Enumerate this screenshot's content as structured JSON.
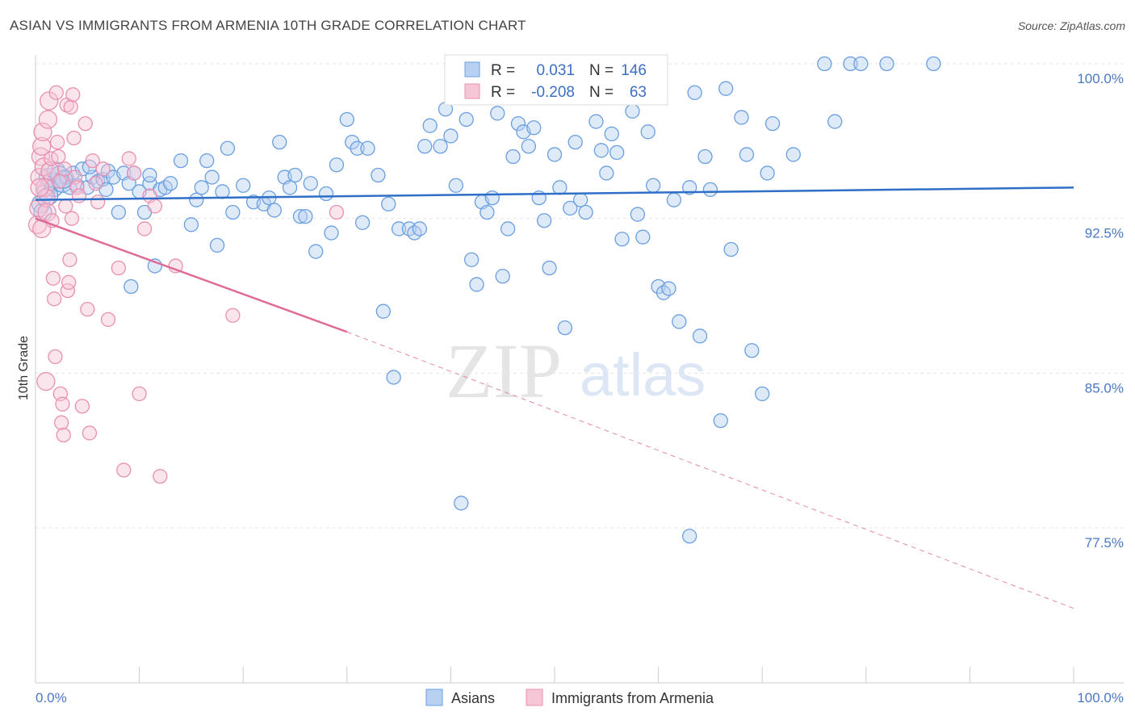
{
  "title": "ASIAN VS IMMIGRANTS FROM ARMENIA 10TH GRADE CORRELATION CHART",
  "source": "Source: ZipAtlas.com",
  "watermark": {
    "zip": "ZIP",
    "atlas": "atlas"
  },
  "chart_data": {
    "type": "scatter",
    "ylabel": "10th Grade",
    "xlim": [
      0,
      100
    ],
    "ylim": [
      70,
      100
    ],
    "y_ticks": [
      {
        "value": 100.0,
        "label": "100.0%"
      },
      {
        "value": 92.5,
        "label": "92.5%"
      },
      {
        "value": 85.0,
        "label": "85.0%"
      },
      {
        "value": 77.5,
        "label": "77.5%"
      }
    ],
    "x_tick_labels": {
      "min": "0.0%",
      "max": "100.0%"
    },
    "x_minor_ticks": [
      0,
      10,
      20,
      30,
      40,
      50,
      60,
      70,
      80,
      90,
      100
    ],
    "grid": true,
    "legend_position": "top-center",
    "series": [
      {
        "name": "Asians",
        "color": "#6a9fe0",
        "fill": "#b8d0f2",
        "R_label": "R =",
        "R": "0.031",
        "N_label": "N =",
        "N": "146",
        "trend": {
          "x": [
            0,
            100
          ],
          "y": [
            93.4,
            94.0
          ],
          "style": "solid",
          "color": "#2f6fc8"
        },
        "points": [
          [
            0.5,
            93.2
          ],
          [
            0.7,
            92.8
          ],
          [
            1.0,
            93.8
          ],
          [
            1.2,
            94.5
          ],
          [
            1.5,
            94.3
          ],
          [
            1.8,
            94.0
          ],
          [
            2.0,
            94.8
          ],
          [
            2.3,
            94.6
          ],
          [
            2.6,
            94.2
          ],
          [
            3.0,
            94.5
          ],
          [
            3.3,
            94.0
          ],
          [
            3.6,
            94.7
          ],
          [
            4.0,
            94.1
          ],
          [
            4.5,
            94.9
          ],
          [
            5.0,
            94.0
          ],
          [
            5.5,
            94.5
          ],
          [
            6.0,
            94.3
          ],
          [
            6.5,
            94.4
          ],
          [
            7.0,
            94.8
          ],
          [
            7.5,
            94.5
          ],
          [
            8.0,
            92.8
          ],
          [
            8.5,
            94.7
          ],
          [
            9.0,
            94.2
          ],
          [
            9.5,
            94.7
          ],
          [
            10.0,
            93.8
          ],
          [
            10.5,
            92.8
          ],
          [
            11.0,
            94.2
          ],
          [
            11.5,
            90.2
          ],
          [
            12.0,
            93.9
          ],
          [
            12.5,
            94.0
          ],
          [
            13.0,
            94.2
          ],
          [
            14.0,
            95.3
          ],
          [
            15.0,
            92.2
          ],
          [
            15.5,
            93.4
          ],
          [
            16.0,
            94.0
          ],
          [
            16.5,
            95.3
          ],
          [
            17.0,
            94.5
          ],
          [
            17.5,
            91.2
          ],
          [
            18.0,
            93.8
          ],
          [
            18.5,
            95.9
          ],
          [
            19.0,
            92.8
          ],
          [
            20.0,
            94.1
          ],
          [
            21.0,
            93.3
          ],
          [
            22.0,
            93.2
          ],
          [
            22.5,
            93.5
          ],
          [
            23.0,
            92.9
          ],
          [
            23.5,
            96.2
          ],
          [
            24.0,
            94.5
          ],
          [
            24.5,
            94.0
          ],
          [
            25.0,
            94.6
          ],
          [
            25.5,
            92.6
          ],
          [
            26.0,
            92.6
          ],
          [
            26.5,
            94.2
          ],
          [
            27.0,
            90.9
          ],
          [
            28.0,
            93.7
          ],
          [
            28.5,
            91.8
          ],
          [
            29.0,
            95.1
          ],
          [
            30.0,
            97.3
          ],
          [
            30.5,
            96.2
          ],
          [
            31.0,
            95.9
          ],
          [
            31.5,
            92.3
          ],
          [
            32.0,
            95.9
          ],
          [
            33.0,
            94.6
          ],
          [
            33.5,
            88.0
          ],
          [
            34.0,
            93.2
          ],
          [
            34.5,
            84.8
          ],
          [
            35.0,
            92.0
          ],
          [
            36.0,
            92.0
          ],
          [
            36.5,
            91.8
          ],
          [
            37.0,
            92.0
          ],
          [
            37.5,
            96.0
          ],
          [
            38.0,
            97.0
          ],
          [
            39.0,
            96.0
          ],
          [
            39.5,
            97.8
          ],
          [
            40.0,
            96.5
          ],
          [
            40.5,
            94.1
          ],
          [
            41.0,
            78.7
          ],
          [
            41.5,
            97.3
          ],
          [
            42.0,
            90.5
          ],
          [
            42.5,
            89.3
          ],
          [
            43.0,
            93.3
          ],
          [
            43.5,
            92.8
          ],
          [
            44.0,
            93.5
          ],
          [
            44.5,
            97.6
          ],
          [
            45.0,
            89.7
          ],
          [
            45.5,
            92.0
          ],
          [
            46.0,
            95.5
          ],
          [
            46.5,
            97.1
          ],
          [
            47.0,
            96.7
          ],
          [
            47.5,
            96.0
          ],
          [
            48.0,
            96.9
          ],
          [
            48.5,
            93.5
          ],
          [
            49.0,
            92.4
          ],
          [
            49.5,
            90.1
          ],
          [
            50.0,
            95.6
          ],
          [
            50.5,
            94.0
          ],
          [
            51.0,
            87.2
          ],
          [
            51.5,
            93.0
          ],
          [
            52.0,
            96.2
          ],
          [
            52.5,
            93.4
          ],
          [
            53.0,
            92.8
          ],
          [
            54.0,
            97.2
          ],
          [
            54.5,
            95.8
          ],
          [
            55.0,
            94.7
          ],
          [
            55.5,
            96.6
          ],
          [
            56.0,
            95.7
          ],
          [
            56.5,
            91.5
          ],
          [
            57.0,
            98.7
          ],
          [
            57.5,
            97.7
          ],
          [
            58.0,
            92.7
          ],
          [
            58.5,
            91.6
          ],
          [
            59.0,
            96.7
          ],
          [
            59.5,
            94.1
          ],
          [
            60.0,
            89.2
          ],
          [
            60.5,
            88.9
          ],
          [
            61.0,
            89.1
          ],
          [
            61.5,
            93.4
          ],
          [
            62.0,
            87.5
          ],
          [
            63.0,
            94.0
          ],
          [
            63.5,
            98.6
          ],
          [
            64.0,
            86.8
          ],
          [
            64.5,
            95.5
          ],
          [
            65.0,
            93.9
          ],
          [
            66.0,
            82.7
          ],
          [
            66.5,
            98.8
          ],
          [
            67.0,
            91.0
          ],
          [
            68.0,
            97.4
          ],
          [
            68.5,
            95.6
          ],
          [
            69.0,
            86.1
          ],
          [
            70.0,
            84.0
          ],
          [
            70.5,
            94.7
          ],
          [
            71.0,
            97.1
          ],
          [
            73.0,
            95.6
          ],
          [
            76.0,
            100.0
          ],
          [
            78.5,
            100.0
          ],
          [
            79.5,
            100.0
          ],
          [
            82.0,
            100.0
          ],
          [
            86.5,
            100.0
          ],
          [
            77.0,
            97.2
          ],
          [
            63.0,
            77.1
          ],
          [
            5.2,
            95.0
          ],
          [
            6.8,
            93.9
          ],
          [
            9.2,
            89.2
          ],
          [
            11.0,
            94.6
          ],
          [
            2.7,
            94.4
          ],
          [
            1.3,
            93.6
          ]
        ]
      },
      {
        "name": "Immigrants from Armenia",
        "color": "#e890b0",
        "fill": "#f7c6d6",
        "R_label": "R =",
        "R": "-0.208",
        "N_label": "N =",
        "N": "63",
        "trend": {
          "x": [
            0,
            30
          ],
          "y": [
            92.5,
            87.0
          ],
          "style": "solid",
          "color": "#e06b96",
          "extension": {
            "x": [
              30,
              100
            ],
            "y": [
              87.0,
              73.6
            ],
            "style": "dashed"
          }
        },
        "points": [
          [
            0.2,
            92.2
          ],
          [
            0.3,
            93.0
          ],
          [
            0.4,
            94.5
          ],
          [
            0.5,
            95.5
          ],
          [
            0.6,
            96.0
          ],
          [
            0.7,
            96.7
          ],
          [
            0.8,
            95.0
          ],
          [
            0.9,
            94.0
          ],
          [
            1.0,
            93.5
          ],
          [
            1.1,
            92.8
          ],
          [
            1.2,
            97.3
          ],
          [
            1.3,
            98.2
          ],
          [
            1.4,
            94.8
          ],
          [
            1.5,
            95.4
          ],
          [
            1.6,
            92.4
          ],
          [
            1.7,
            89.6
          ],
          [
            1.8,
            88.6
          ],
          [
            1.9,
            85.8
          ],
          [
            2.0,
            98.6
          ],
          [
            2.1,
            96.2
          ],
          [
            2.2,
            95.5
          ],
          [
            2.3,
            94.3
          ],
          [
            2.4,
            84.0
          ],
          [
            2.5,
            82.6
          ],
          [
            2.6,
            83.5
          ],
          [
            2.7,
            82.0
          ],
          [
            2.8,
            94.9
          ],
          [
            2.9,
            93.1
          ],
          [
            3.0,
            98.0
          ],
          [
            3.1,
            89.0
          ],
          [
            3.2,
            89.4
          ],
          [
            3.3,
            90.5
          ],
          [
            3.4,
            97.9
          ],
          [
            3.5,
            92.5
          ],
          [
            3.6,
            98.5
          ],
          [
            3.7,
            96.4
          ],
          [
            3.8,
            94.5
          ],
          [
            4.0,
            94.0
          ],
          [
            4.2,
            93.6
          ],
          [
            4.5,
            83.4
          ],
          [
            4.8,
            97.1
          ],
          [
            5.0,
            88.1
          ],
          [
            5.2,
            82.1
          ],
          [
            5.5,
            95.3
          ],
          [
            5.8,
            94.2
          ],
          [
            6.0,
            93.3
          ],
          [
            6.5,
            94.9
          ],
          [
            7.0,
            87.6
          ],
          [
            8.0,
            90.1
          ],
          [
            8.5,
            80.3
          ],
          [
            9.0,
            95.4
          ],
          [
            9.5,
            94.7
          ],
          [
            10.0,
            84.0
          ],
          [
            10.5,
            92.0
          ],
          [
            11.0,
            93.6
          ],
          [
            11.5,
            93.1
          ],
          [
            12.0,
            80.0
          ],
          [
            13.5,
            90.2
          ],
          [
            19.0,
            87.8
          ],
          [
            29.0,
            92.8
          ],
          [
            1.0,
            84.6
          ],
          [
            0.6,
            92.0
          ],
          [
            0.4,
            94.0
          ]
        ]
      }
    ]
  }
}
